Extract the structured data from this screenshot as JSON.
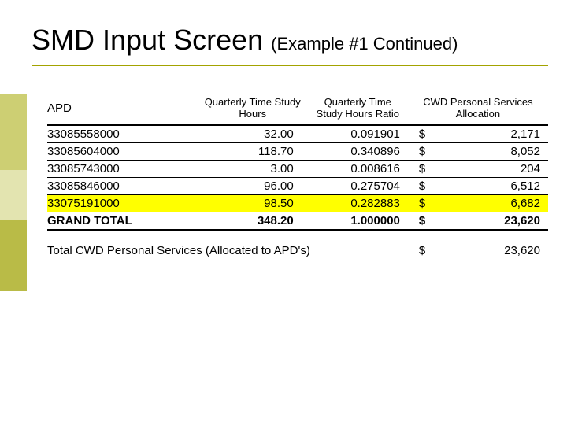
{
  "colors": {
    "olive": "#a3a300",
    "band1": "#cdcf73",
    "band2": "#e3e4b0",
    "band3": "#b9bb47",
    "highlight": "#ffff00",
    "hr": "#a3a300",
    "text": "#000000",
    "background": "#ffffff"
  },
  "title": {
    "main": "SMD Input Screen",
    "sub": "(Example #1 Continued)"
  },
  "table": {
    "headers": {
      "apd": "APD",
      "hours": "Quarterly Time Study Hours",
      "ratio": "Quarterly Time Study Hours Ratio",
      "alloc": "CWD Personal Services Allocation"
    },
    "currency": "$",
    "rows": [
      {
        "apd": "33085558000",
        "hours": "32.00",
        "ratio": "0.091901",
        "amount": "2,171",
        "highlight": false
      },
      {
        "apd": "33085604000",
        "hours": "118.70",
        "ratio": "0.340896",
        "amount": "8,052",
        "highlight": false
      },
      {
        "apd": "33085743000",
        "hours": "3.00",
        "ratio": "0.008616",
        "amount": "204",
        "highlight": false
      },
      {
        "apd": "33085846000",
        "hours": "96.00",
        "ratio": "0.275704",
        "amount": "6,512",
        "highlight": false
      },
      {
        "apd": "33075191000",
        "hours": "98.50",
        "ratio": "0.282883",
        "amount": "6,682",
        "highlight": true
      }
    ],
    "grand_total": {
      "label": "GRAND TOTAL",
      "hours": "348.20",
      "ratio": "1.000000",
      "amount": "23,620"
    },
    "footer": {
      "label": "Total CWD Personal Services (Allocated to APD's)",
      "amount": "23,620"
    }
  }
}
